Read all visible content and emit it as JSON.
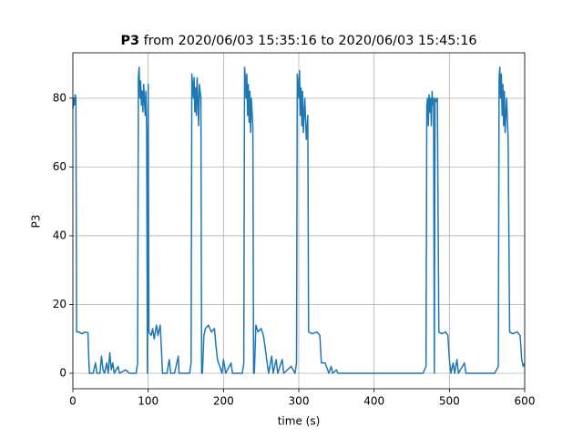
{
  "chart_data": {
    "type": "line",
    "title_series": "P3",
    "title": "from 2020/06/03 15:35:16 to 2020/06/03 15:45:16",
    "x_label": "time (s)",
    "y_label": "P3",
    "xlim": [
      0,
      600
    ],
    "ylim": [
      -4.5,
      93.2
    ],
    "xticks": [
      0,
      100,
      200,
      300,
      400,
      500,
      600
    ],
    "yticks": [
      0,
      20,
      40,
      60,
      80
    ],
    "grid": true,
    "color": "#1f77b4",
    "x": [
      0,
      1,
      2,
      3,
      4,
      5,
      8,
      12,
      16,
      20,
      21,
      22,
      27,
      30,
      32,
      36,
      38,
      40,
      42,
      45,
      47,
      49,
      51,
      53,
      55,
      60,
      62,
      70,
      75,
      84,
      86,
      87,
      88,
      89,
      90,
      91,
      92,
      93,
      94,
      95,
      96,
      97,
      98,
      99,
      100,
      101,
      104,
      106,
      108,
      111,
      113,
      116,
      118,
      119,
      125,
      128,
      130,
      135,
      140,
      141,
      150,
      155,
      157,
      158,
      159,
      160,
      161,
      162,
      163,
      164,
      165,
      166,
      167,
      168,
      170,
      171,
      172,
      174,
      176,
      180,
      184,
      188,
      190,
      192,
      195,
      198,
      200,
      203,
      210,
      212,
      225,
      227,
      228,
      229,
      230,
      231,
      232,
      233,
      234,
      235,
      236,
      237,
      239,
      240,
      241,
      243,
      246,
      250,
      253,
      255,
      258,
      260,
      264,
      266,
      270,
      272,
      278,
      280,
      290,
      295,
      297,
      298,
      299,
      300,
      301,
      302,
      303,
      304,
      305,
      306,
      308,
      310,
      312,
      313,
      318,
      324,
      328,
      330,
      335,
      340,
      343,
      345,
      350,
      352,
      360,
      400,
      440,
      465,
      469,
      470,
      471,
      472,
      473,
      474,
      475,
      476,
      477,
      478,
      479,
      480,
      481,
      482,
      484,
      486,
      490,
      495,
      498,
      500,
      502,
      505,
      507,
      510,
      512,
      520,
      522,
      540,
      560,
      565,
      566,
      567,
      568,
      569,
      570,
      571,
      572,
      573,
      574,
      576,
      578,
      580,
      584,
      590,
      594,
      596,
      598,
      600
    ],
    "values": [
      77,
      80,
      78,
      81,
      80,
      12,
      12,
      11.5,
      12,
      11.8,
      5,
      0,
      0,
      3,
      0,
      0,
      5,
      1,
      0,
      3,
      0,
      6,
      1,
      3,
      0,
      2,
      0,
      1,
      0,
      0,
      3,
      86,
      89,
      80,
      85,
      78,
      82,
      76,
      84,
      80,
      75,
      82,
      70,
      0,
      84,
      12,
      11,
      13,
      10,
      14,
      11,
      14,
      5,
      0,
      0,
      4,
      0,
      0,
      5,
      0,
      0,
      0,
      3,
      87,
      84,
      80,
      86,
      76,
      83,
      75,
      86,
      79,
      72,
      84,
      80,
      0,
      0,
      11,
      13,
      14,
      12,
      13,
      8,
      4,
      2,
      0,
      4,
      0,
      3,
      0,
      0,
      3,
      89,
      86,
      80,
      87,
      75,
      84,
      73,
      82,
      70,
      80,
      72,
      0,
      0,
      14,
      12,
      13,
      11,
      8,
      3,
      0,
      5,
      0,
      4,
      0,
      4,
      0,
      2,
      0,
      3,
      87,
      84,
      80,
      88,
      75,
      83,
      72,
      82,
      70,
      80,
      68,
      75,
      12,
      11.5,
      12,
      11,
      3,
      3,
      0,
      2,
      0,
      1,
      0,
      0,
      0,
      0,
      0,
      2,
      78,
      80,
      72,
      81,
      76,
      80,
      72,
      82,
      78,
      80,
      0,
      80,
      79,
      80,
      12,
      11.5,
      12,
      11,
      4,
      0,
      3,
      0,
      4,
      0,
      3,
      0,
      0,
      0,
      2,
      86,
      89,
      80,
      87,
      75,
      84,
      72,
      82,
      70,
      80,
      68,
      12,
      11.5,
      12,
      11,
      4,
      2,
      3
    ]
  }
}
